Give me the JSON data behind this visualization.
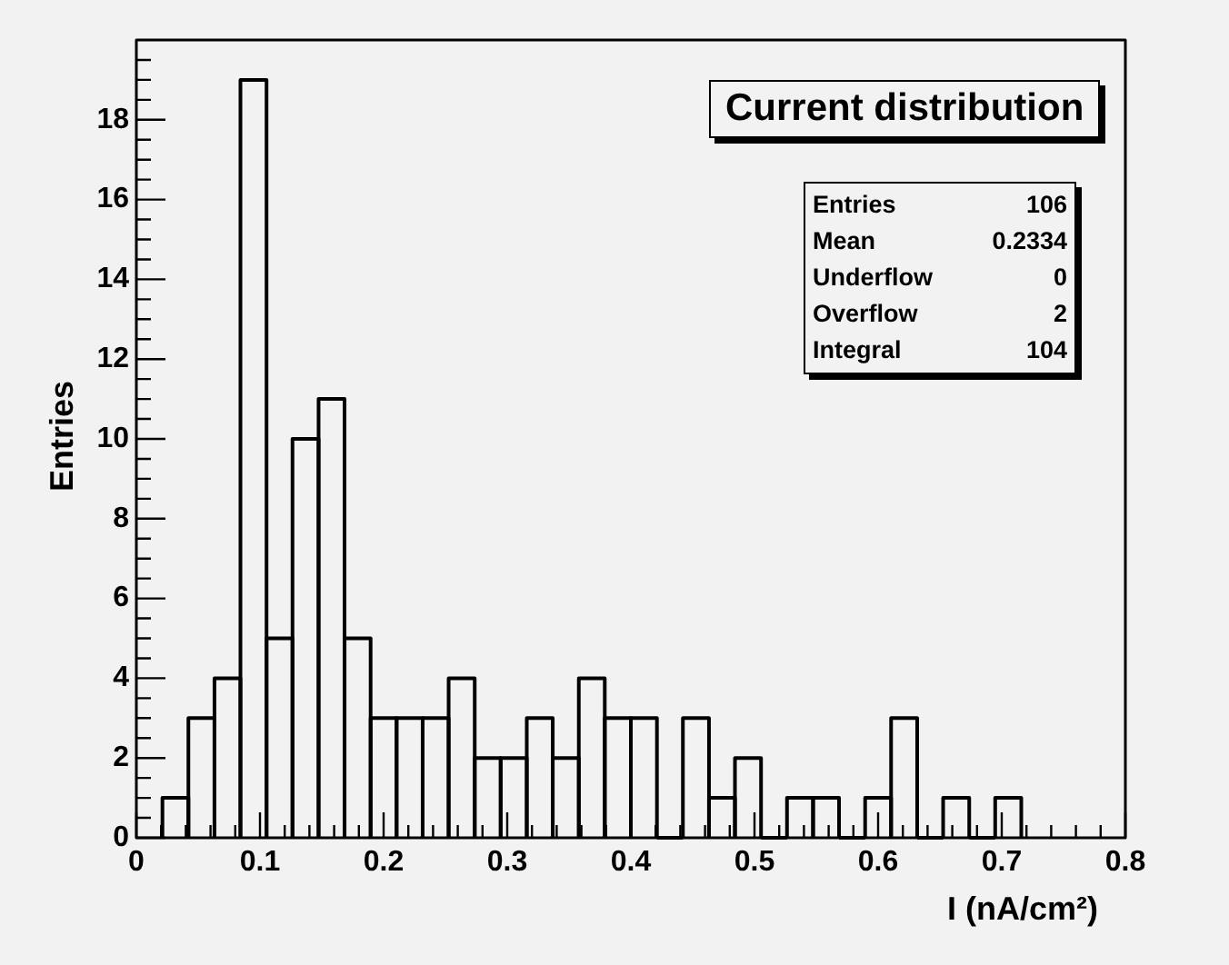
{
  "chart_data": {
    "type": "histogram",
    "title": "Current distribution",
    "xlabel": "I (nA/cm²)",
    "ylabel": "Entries",
    "bins": [
      0.0211,
      0.0421,
      0.0632,
      0.0842,
      0.1053,
      0.1263,
      0.1474,
      0.1684,
      0.1895,
      0.2105,
      0.2316,
      0.2526,
      0.2737,
      0.2947,
      0.3158,
      0.3368,
      0.3579,
      0.3789,
      0.4,
      0.4211,
      0.4421,
      0.4632,
      0.4842,
      0.5053,
      0.5263,
      0.5474,
      0.5684,
      0.5895,
      0.6105,
      0.6316,
      0.6526,
      0.6737,
      0.6947,
      0.7158
    ],
    "values": [
      1,
      3,
      4,
      19,
      5,
      10,
      11,
      5,
      3,
      3,
      3,
      4,
      2,
      2,
      3,
      2,
      4,
      3,
      3,
      0,
      3,
      1,
      2,
      0,
      1,
      1,
      0,
      1,
      3,
      0,
      1,
      0,
      1
    ],
    "color": "#000000",
    "xlim": [
      0,
      0.8
    ],
    "xticks": [
      0,
      {
        "value": 0.02,
        "label": null
      },
      {
        "value": 0.04,
        "label": null
      },
      {
        "value": 0.06,
        "label": null
      },
      {
        "value": 0.08,
        "label": null
      },
      0.1,
      {
        "value": 0.12,
        "label": null
      },
      {
        "value": 0.14,
        "label": null
      },
      {
        "value": 0.16,
        "label": null
      },
      {
        "value": 0.18,
        "label": null
      },
      0.2,
      {
        "value": 0.22,
        "label": null
      },
      {
        "value": 0.24,
        "label": null
      },
      {
        "value": 0.26,
        "label": null
      },
      {
        "value": 0.28,
        "label": null
      },
      0.3,
      {
        "value": 0.32,
        "label": null
      },
      {
        "value": 0.34,
        "label": null
      },
      {
        "value": 0.36,
        "label": null
      },
      {
        "value": 0.38,
        "label": null
      },
      0.4,
      {
        "value": 0.42,
        "label": null
      },
      {
        "value": 0.44,
        "label": null
      },
      {
        "value": 0.46,
        "label": null
      },
      {
        "value": 0.48,
        "label": null
      },
      0.5,
      {
        "value": 0.52,
        "label": null
      },
      {
        "value": 0.54,
        "label": null
      },
      {
        "value": 0.56,
        "label": null
      },
      {
        "value": 0.58,
        "label": null
      },
      0.6,
      {
        "value": 0.62,
        "label": null
      },
      {
        "value": 0.64,
        "label": null
      },
      {
        "value": 0.66,
        "label": null
      },
      {
        "value": 0.68,
        "label": null
      },
      0.7,
      {
        "value": 0.72,
        "label": null
      },
      {
        "value": 0.74,
        "label": null
      },
      {
        "value": 0.76,
        "label": null
      },
      {
        "value": 0.78,
        "label": null
      },
      0.8
    ],
    "ylim": [
      0,
      20
    ],
    "yticks": [
      0,
      {
        "value": 0.5,
        "label": null
      },
      {
        "value": 1,
        "label": null
      },
      {
        "value": 1.5,
        "label": null
      },
      2,
      {
        "value": 2.5,
        "label": null
      },
      {
        "value": 3,
        "label": null
      },
      {
        "value": 3.5,
        "label": null
      },
      4,
      {
        "value": 4.5,
        "label": null
      },
      {
        "value": 5,
        "label": null
      },
      {
        "value": 5.5,
        "label": null
      },
      6,
      {
        "value": 6.5,
        "label": null
      },
      {
        "value": 7,
        "label": null
      },
      {
        "value": 7.5,
        "label": null
      },
      8,
      {
        "value": 8.5,
        "label": null
      },
      {
        "value": 9,
        "label": null
      },
      {
        "value": 9.5,
        "label": null
      },
      10,
      {
        "value": 10.5,
        "label": null
      },
      {
        "value": 11,
        "label": null
      },
      {
        "value": 11.5,
        "label": null
      },
      12,
      {
        "value": 12.5,
        "label": null
      },
      {
        "value": 13,
        "label": null
      },
      {
        "value": 13.5,
        "label": null
      },
      14,
      {
        "value": 14.5,
        "label": null
      },
      {
        "value": 15,
        "label": null
      },
      {
        "value": 15.5,
        "label": null
      },
      16,
      {
        "value": 16.5,
        "label": null
      },
      {
        "value": 17,
        "label": null
      },
      {
        "value": 17.5,
        "label": null
      },
      18,
      {
        "value": 18.5,
        "label": null
      },
      {
        "value": 19,
        "label": null
      },
      {
        "value": 19.5,
        "label": null
      }
    ],
    "annotations": [
      "Entries 106",
      "Mean 0.2334",
      "Underflow 0",
      "Overflow 2",
      "Integral 104"
    ],
    "grid": false,
    "legend": false
  }
}
